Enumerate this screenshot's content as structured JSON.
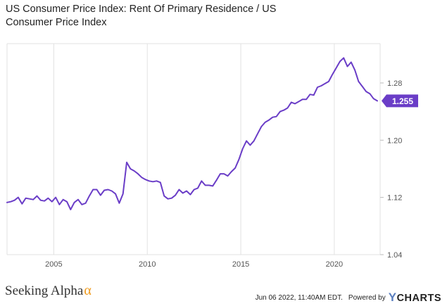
{
  "chart_data": {
    "type": "line",
    "title": "US Consumer Price Index: Rent Of Primary Residence / US Consumer Price Index",
    "xlabel": "",
    "ylabel": "",
    "xlim": [
      2002.5,
      2022.45
    ],
    "ylim": [
      1.04,
      1.335
    ],
    "x_ticks": [
      2005,
      2010,
      2015,
      2020
    ],
    "y_ticks": [
      1.04,
      1.12,
      1.2,
      1.28
    ],
    "y_tick_labels": [
      "1.04",
      "1.12",
      "1.20",
      "1.28"
    ],
    "grid": "vertical",
    "legend": "none",
    "last_value_label": "1.255",
    "series": [
      {
        "color": "#6a3dc7",
        "x": [
          2002.5,
          2002.7,
          2002.9,
          2003.1,
          2003.3,
          2003.5,
          2003.7,
          2003.9,
          2004.1,
          2004.3,
          2004.5,
          2004.7,
          2004.9,
          2005.1,
          2005.3,
          2005.5,
          2005.7,
          2005.9,
          2006.1,
          2006.3,
          2006.5,
          2006.7,
          2006.9,
          2007.1,
          2007.3,
          2007.5,
          2007.7,
          2007.9,
          2008.1,
          2008.3,
          2008.5,
          2008.7,
          2008.9,
          2009.1,
          2009.3,
          2009.5,
          2009.7,
          2009.9,
          2010.1,
          2010.3,
          2010.5,
          2010.7,
          2010.9,
          2011.1,
          2011.3,
          2011.5,
          2011.7,
          2011.9,
          2012.1,
          2012.3,
          2012.5,
          2012.7,
          2012.9,
          2013.1,
          2013.3,
          2013.5,
          2013.7,
          2013.9,
          2014.1,
          2014.3,
          2014.5,
          2014.7,
          2014.9,
          2015.1,
          2015.3,
          2015.5,
          2015.7,
          2015.9,
          2016.1,
          2016.3,
          2016.5,
          2016.7,
          2016.9,
          2017.1,
          2017.3,
          2017.5,
          2017.7,
          2017.9,
          2018.1,
          2018.3,
          2018.5,
          2018.7,
          2018.9,
          2019.1,
          2019.3,
          2019.5,
          2019.7,
          2019.9,
          2020.1,
          2020.3,
          2020.5,
          2020.7,
          2020.9,
          2021.1,
          2021.3,
          2021.5,
          2021.7,
          2021.9,
          2022.1,
          2022.3
        ],
        "values": [
          1.113,
          1.114,
          1.116,
          1.12,
          1.111,
          1.119,
          1.118,
          1.117,
          1.122,
          1.116,
          1.115,
          1.119,
          1.114,
          1.12,
          1.11,
          1.117,
          1.114,
          1.103,
          1.113,
          1.117,
          1.11,
          1.112,
          1.122,
          1.131,
          1.131,
          1.123,
          1.13,
          1.131,
          1.129,
          1.125,
          1.112,
          1.125,
          1.169,
          1.16,
          1.157,
          1.153,
          1.148,
          1.145,
          1.143,
          1.142,
          1.143,
          1.141,
          1.122,
          1.118,
          1.119,
          1.123,
          1.131,
          1.126,
          1.129,
          1.124,
          1.131,
          1.133,
          1.143,
          1.137,
          1.137,
          1.136,
          1.144,
          1.153,
          1.153,
          1.15,
          1.156,
          1.161,
          1.173,
          1.188,
          1.199,
          1.193,
          1.199,
          1.209,
          1.219,
          1.225,
          1.228,
          1.232,
          1.233,
          1.24,
          1.242,
          1.245,
          1.253,
          1.251,
          1.254,
          1.257,
          1.257,
          1.264,
          1.263,
          1.274,
          1.276,
          1.279,
          1.282,
          1.292,
          1.301,
          1.31,
          1.315,
          1.303,
          1.309,
          1.298,
          1.282,
          1.275,
          1.268,
          1.265,
          1.258,
          1.255
        ]
      }
    ]
  },
  "footer": {
    "brand_left": "Seeking Alpha",
    "brand_left_symbol": "α",
    "timestamp": "Jun 06 2022, 11:40AM EDT.",
    "powered_by": "Powered by",
    "brand_right_y": "Y",
    "brand_right": "CHARTS"
  },
  "colors": {
    "line": "#6a3dc7",
    "grid": "#e2e2e2",
    "axis_text": "#555555",
    "alpha_orange": "#f09a1a"
  }
}
